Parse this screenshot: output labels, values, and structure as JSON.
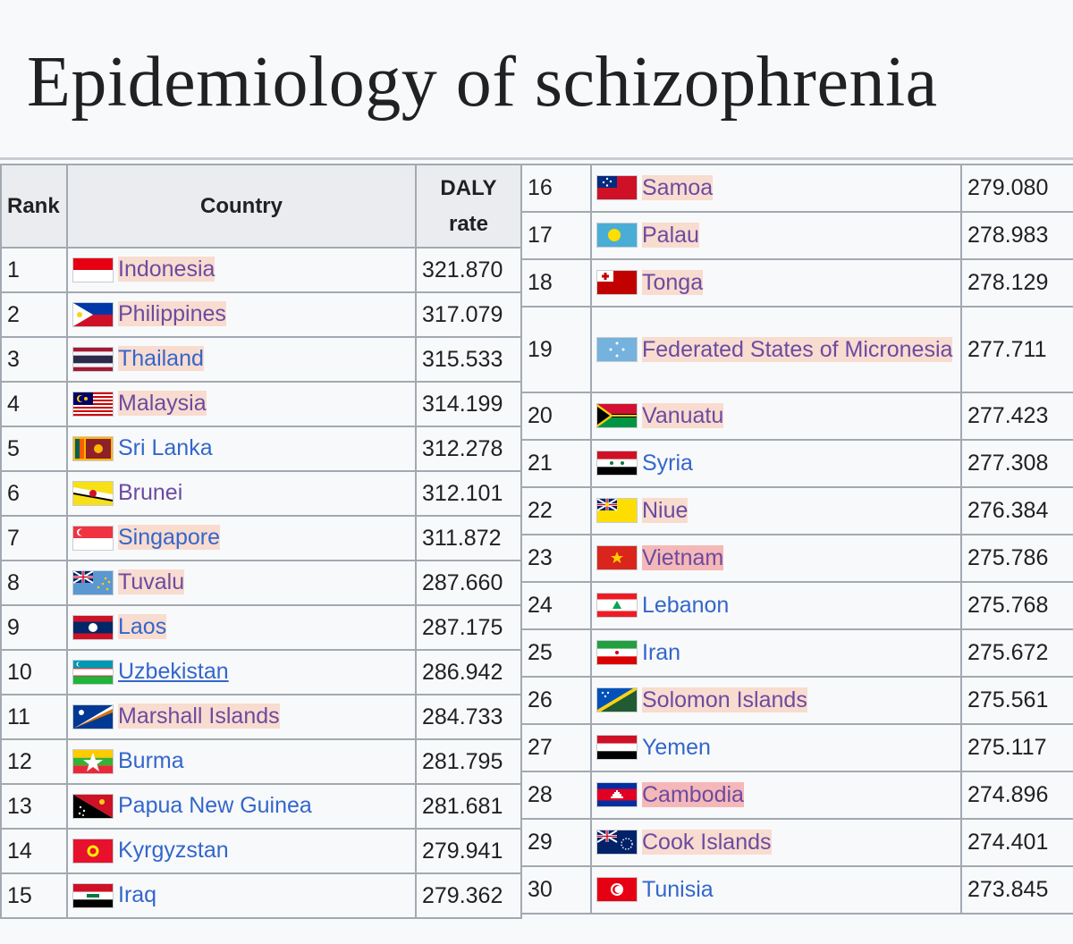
{
  "page": {
    "title": "Epidemiology of schizophrenia"
  },
  "table": {
    "headers": {
      "rank": "Rank",
      "country": "Country",
      "daly_line1": "DALY",
      "daly_line2": "rate"
    },
    "rows": [
      {
        "rank": "1",
        "country": "Indonesia",
        "rate": "321.870",
        "flag": "indonesia",
        "style": "v hl"
      },
      {
        "rank": "2",
        "country": "Philippines",
        "rate": "317.079",
        "flag": "philippines",
        "style": "v hl"
      },
      {
        "rank": "3",
        "country": "Thailand",
        "rate": "315.533",
        "flag": "thailand",
        "style": "hl"
      },
      {
        "rank": "4",
        "country": "Malaysia",
        "rate": "314.199",
        "flag": "malaysia",
        "style": "v hl"
      },
      {
        "rank": "5",
        "country": "Sri Lanka",
        "rate": "312.278",
        "flag": "sri-lanka",
        "style": ""
      },
      {
        "rank": "6",
        "country": "Brunei",
        "rate": "312.101",
        "flag": "brunei",
        "style": "v"
      },
      {
        "rank": "7",
        "country": "Singapore",
        "rate": "311.872",
        "flag": "singapore",
        "style": "hl"
      },
      {
        "rank": "8",
        "country": "Tuvalu",
        "rate": "287.660",
        "flag": "tuvalu",
        "style": "v hl"
      },
      {
        "rank": "9",
        "country": "Laos",
        "rate": "287.175",
        "flag": "laos",
        "style": "hl"
      },
      {
        "rank": "10",
        "country": "Uzbekistan",
        "rate": "286.942",
        "flag": "uzbekistan",
        "style": "ul"
      },
      {
        "rank": "11",
        "country": "Marshall Islands",
        "rate": "284.733",
        "flag": "marshall-islands",
        "style": "v hl"
      },
      {
        "rank": "12",
        "country": "Burma",
        "rate": "281.795",
        "flag": "burma",
        "style": ""
      },
      {
        "rank": "13",
        "country": "Papua New Guinea",
        "rate": "281.681",
        "flag": "papua-new-guinea",
        "style": ""
      },
      {
        "rank": "14",
        "country": "Kyrgyzstan",
        "rate": "279.941",
        "flag": "kyrgyzstan",
        "style": ""
      },
      {
        "rank": "15",
        "country": "Iraq",
        "rate": "279.362",
        "flag": "iraq",
        "style": ""
      },
      {
        "rank": "16",
        "country": "Samoa",
        "rate": "279.080",
        "flag": "samoa",
        "style": "v hl"
      },
      {
        "rank": "17",
        "country": "Palau",
        "rate": "278.983",
        "flag": "palau",
        "style": "v hl"
      },
      {
        "rank": "18",
        "country": "Tonga",
        "rate": "278.129",
        "flag": "tonga",
        "style": "v hl"
      },
      {
        "rank": "19",
        "country": "Federated States of Micronesia",
        "rate": "277.711",
        "flag": "micronesia",
        "style": "v hl"
      },
      {
        "rank": "20",
        "country": "Vanuatu",
        "rate": "277.423",
        "flag": "vanuatu",
        "style": "v hl"
      },
      {
        "rank": "21",
        "country": "Syria",
        "rate": "277.308",
        "flag": "syria",
        "style": ""
      },
      {
        "rank": "22",
        "country": "Niue",
        "rate": "276.384",
        "flag": "niue",
        "style": "v hl"
      },
      {
        "rank": "23",
        "country": "Vietnam",
        "rate": "275.786",
        "flag": "vietnam",
        "style": "hl2"
      },
      {
        "rank": "24",
        "country": "Lebanon",
        "rate": "275.768",
        "flag": "lebanon",
        "style": ""
      },
      {
        "rank": "25",
        "country": "Iran",
        "rate": "275.672",
        "flag": "iran",
        "style": ""
      },
      {
        "rank": "26",
        "country": "Solomon Islands",
        "rate": "275.561",
        "flag": "solomon-islands",
        "style": "v hl"
      },
      {
        "rank": "27",
        "country": "Yemen",
        "rate": "275.117",
        "flag": "yemen",
        "style": ""
      },
      {
        "rank": "28",
        "country": "Cambodia",
        "rate": "274.896",
        "flag": "cambodia",
        "style": "hl2"
      },
      {
        "rank": "29",
        "country": "Cook Islands",
        "rate": "274.401",
        "flag": "cook-islands",
        "style": "v hl"
      },
      {
        "rank": "30",
        "country": "Tunisia",
        "rate": "273.845",
        "flag": "tunisia",
        "style": ""
      }
    ]
  },
  "colors": {
    "link": "#3366cc",
    "visited_link": "#6b4ba1",
    "highlight": "#f8dcd0",
    "header_bg": "#eaecf0",
    "border": "#a2a9b1"
  }
}
